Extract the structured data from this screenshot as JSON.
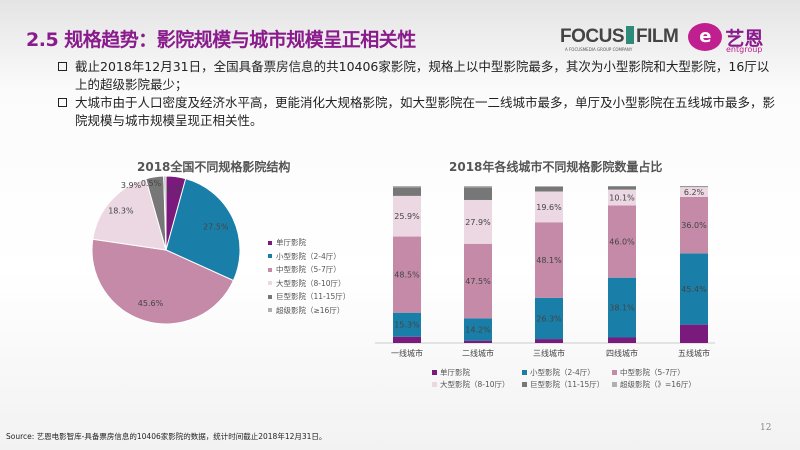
{
  "title": "2.5 规格趋势：影院规模与城市规模呈正相关性",
  "logo": {
    "focus_left": "FOCUS",
    "focus_right": "FILM",
    "focus_sub": "A FOCUSMEDIA GROUP COMPANY",
    "ent_cn": "艺恩",
    "ent_en": "entgroup"
  },
  "bullets": [
    "截止2018年12月31日，全国具备票房信息的共10406家影院，规格上以中型影院最多，其次为小型影院和大型影院，16厅以上的超级影院最少；",
    "大城市由于人口密度及经济水平高，更能消化大规格影院，如大型影院在一二线城市最多，单厅及小型影院在五线城市最多，影院规模与城市规模呈现正相关性。"
  ],
  "colors": {
    "single": "#7a1a7c",
    "small": "#1a7fa8",
    "mid": "#c48aa8",
    "large": "#ecd8e2",
    "giant": "#777777",
    "super": "#b0b0b0",
    "title": "#8a1b8c"
  },
  "chart_data": [
    {
      "type": "pie",
      "title": "2018全国不同规格影院结构",
      "legend_position": "right",
      "categories": [
        "单厅影院",
        "小型影院（2-4厅）",
        "中型影院（5-7厅）",
        "大型影院（8-10厅）",
        "巨型影院（11-15厅）",
        "超级影院（≥16厅）"
      ],
      "values": [
        4.3,
        27.5,
        45.6,
        18.3,
        3.9,
        0.5
      ],
      "labels": [
        "4.3%",
        "27.5%",
        "45.6%",
        "18.3%",
        "3.9%",
        "0.5%"
      ]
    },
    {
      "type": "bar",
      "stacked": true,
      "title": "2018年各线城市不同规格影院数量占比",
      "legend_position": "bottom",
      "categories": [
        "一线城市",
        "二线城市",
        "三线城市",
        "四线城市",
        "五线城市"
      ],
      "series": [
        {
          "name": "单厅影院",
          "values": [
            4.0,
            1.5,
            2.5,
            3.5,
            11.7
          ],
          "labels": [
            "",
            "",
            "",
            "",
            ""
          ]
        },
        {
          "name": "小型影院（2-4厅）",
          "values": [
            15.3,
            14.2,
            26.3,
            38.1,
            45.4
          ],
          "labels": [
            "15.3%",
            "14.2%",
            "26.3%",
            "38.1%",
            "45.4%"
          ]
        },
        {
          "name": "中型影院（5-7厅）",
          "values": [
            48.5,
            47.5,
            48.1,
            46.0,
            36.0
          ],
          "labels": [
            "48.5%",
            "47.5%",
            "48.1%",
            "46.0%",
            "36.0%"
          ]
        },
        {
          "name": "大型影院（8-10厅）",
          "values": [
            25.9,
            27.9,
            19.6,
            10.1,
            6.2
          ],
          "labels": [
            "25.9%",
            "27.9%",
            "19.6%",
            "10.1%",
            "6.2%"
          ]
        },
        {
          "name": "巨型影院（11-15厅）",
          "values": [
            5.5,
            8.0,
            3.0,
            2.0,
            0.5
          ],
          "labels": [
            "",
            "",
            "",
            "",
            ""
          ]
        },
        {
          "name": "超级影院（》=16厅）",
          "values": [
            0.8,
            0.9,
            0.5,
            0.3,
            0.2
          ],
          "labels": [
            "",
            "",
            "",
            "",
            ""
          ]
        }
      ],
      "ylim": [
        0,
        100
      ]
    }
  ],
  "source": "Source: 艺恩电影智库-具备票房信息的10406家影院的数据，统计时间截止2018年12月31日。",
  "page_number": "12"
}
